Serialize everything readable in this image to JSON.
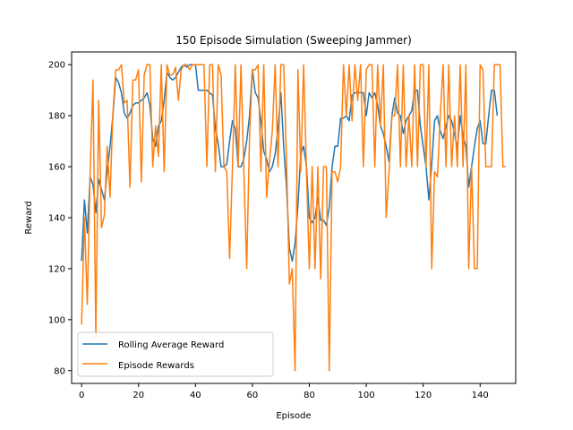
{
  "chart_data": {
    "type": "line",
    "title": "150 Episode Simulation (Sweeping Jammer)",
    "xlabel": "Episode",
    "ylabel": "Reward",
    "xlim": [
      -3.5,
      152.5
    ],
    "ylim": [
      75,
      205
    ],
    "xticks": [
      0,
      20,
      40,
      60,
      80,
      100,
      120,
      140
    ],
    "yticks": [
      80,
      100,
      120,
      140,
      160,
      180,
      200
    ],
    "grid": false,
    "legend_position": "lower-left",
    "series": [
      {
        "name": "Rolling Average Reward",
        "color": "#1f77b4",
        "x_start": 0,
        "values": [
          123,
          147,
          134,
          156,
          153,
          142,
          155,
          151,
          147,
          158,
          168,
          180,
          195,
          193,
          189,
          181,
          179,
          181,
          184,
          185,
          185,
          186,
          187,
          189,
          184,
          171,
          168,
          176,
          178,
          186,
          197,
          195,
          194,
          195,
          197,
          199,
          200,
          199,
          200,
          200,
          200,
          190,
          190,
          190,
          190,
          189,
          188,
          175,
          169,
          160,
          160,
          161,
          170,
          178,
          175,
          160,
          160,
          163,
          170,
          180,
          198,
          189,
          187,
          178,
          166,
          163,
          158,
          160,
          165,
          175,
          189,
          168,
          152,
          128,
          123,
          130,
          145,
          165,
          168,
          160,
          140,
          138,
          140,
          148,
          139,
          139,
          137,
          144,
          160,
          168,
          168,
          179,
          179,
          180,
          178,
          188,
          189,
          189,
          189,
          189,
          180,
          189,
          187,
          189,
          184,
          176,
          173,
          168,
          162,
          180,
          187,
          181,
          180,
          173,
          178,
          180,
          182,
          190,
          190,
          176,
          168,
          160,
          147,
          161,
          178,
          180,
          174,
          171,
          176,
          180,
          178,
          173,
          167,
          180,
          172,
          168,
          152,
          160,
          168,
          175,
          178,
          169,
          169,
          180,
          190,
          190,
          180
        ],
        "x_end_note": ""
      },
      {
        "name": "Episode Rewards",
        "color": "#ff7f0e",
        "x_start": 0,
        "values": [
          98,
          140,
          106,
          157,
          194,
          93,
          186,
          136,
          141,
          168,
          148,
          181,
          198,
          198,
          200,
          185,
          186,
          152,
          194,
          194,
          198,
          154,
          196,
          200,
          200,
          160,
          176,
          164,
          200,
          158,
          200,
          196,
          196,
          199,
          186,
          198,
          200,
          200,
          198,
          200,
          200,
          200,
          200,
          200,
          160,
          200,
          200,
          158,
          200,
          196,
          160,
          158,
          124,
          160,
          200,
          160,
          200,
          158,
          120,
          172,
          198,
          198,
          200,
          158,
          200,
          148,
          162,
          174,
          200,
          160,
          200,
          200,
          162,
          114,
          120,
          80,
          198,
          158,
          200,
          158,
          120,
          160,
          120,
          160,
          116,
          160,
          160,
          80,
          158,
          158,
          154,
          160,
          200,
          180,
          200,
          178,
          200,
          186,
          200,
          160,
          198,
          200,
          200,
          160,
          200,
          176,
          200,
          140,
          158,
          180,
          180,
          200,
          160,
          200,
          160,
          180,
          160,
          200,
          160,
          200,
          200,
          160,
          200,
          120,
          158,
          156,
          180,
          200,
          160,
          200,
          160,
          180,
          160,
          200,
          160,
          200,
          120,
          160,
          120,
          120,
          200,
          198,
          160,
          160,
          160,
          200,
          200,
          200,
          160,
          160
        ]
      }
    ]
  }
}
